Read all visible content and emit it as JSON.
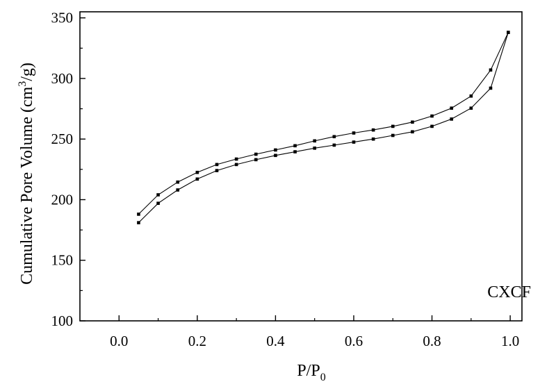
{
  "chart_data": {
    "type": "line",
    "title": "",
    "xlabel": "P/P",
    "xlabel_sub": "0",
    "ylabel": "Cumulative  Pore Volume (cm",
    "ylabel_sup": "3",
    "ylabel_end": "/g)",
    "annotation": "CXCF",
    "xlim": [
      -0.1,
      1.03
    ],
    "ylim": [
      100,
      355
    ],
    "x_ticks": [
      0.0,
      0.2,
      0.4,
      0.6,
      0.8,
      1.0
    ],
    "x_tick_labels": [
      "0.0",
      "0.2",
      "0.4",
      "0.6",
      "0.8",
      "1.0"
    ],
    "y_ticks": [
      100,
      150,
      200,
      250,
      300,
      350
    ],
    "y_tick_labels": [
      "100",
      "150",
      "200",
      "250",
      "300",
      "350"
    ],
    "grid": false,
    "series": [
      {
        "x": [
          0.05,
          0.1,
          0.15,
          0.2,
          0.25,
          0.3,
          0.35,
          0.4,
          0.45,
          0.5,
          0.55,
          0.6,
          0.65,
          0.7,
          0.75,
          0.8,
          0.85,
          0.9,
          0.95,
          0.995
        ],
        "y": [
          181,
          197,
          208,
          217,
          224,
          229,
          233,
          236.5,
          239.5,
          242.5,
          245,
          247.5,
          250,
          253,
          256,
          260.5,
          266.5,
          275.5,
          292,
          338
        ]
      },
      {
        "x": [
          0.05,
          0.1,
          0.15,
          0.2,
          0.25,
          0.3,
          0.35,
          0.4,
          0.45,
          0.5,
          0.55,
          0.6,
          0.65,
          0.7,
          0.75,
          0.8,
          0.85,
          0.9,
          0.95,
          0.995
        ],
        "y": [
          188,
          204,
          214.5,
          222.5,
          229,
          233.5,
          237.5,
          241,
          244.5,
          248.5,
          252,
          255,
          257.5,
          260.5,
          264,
          269,
          275.5,
          285.5,
          307,
          338
        ]
      }
    ]
  }
}
